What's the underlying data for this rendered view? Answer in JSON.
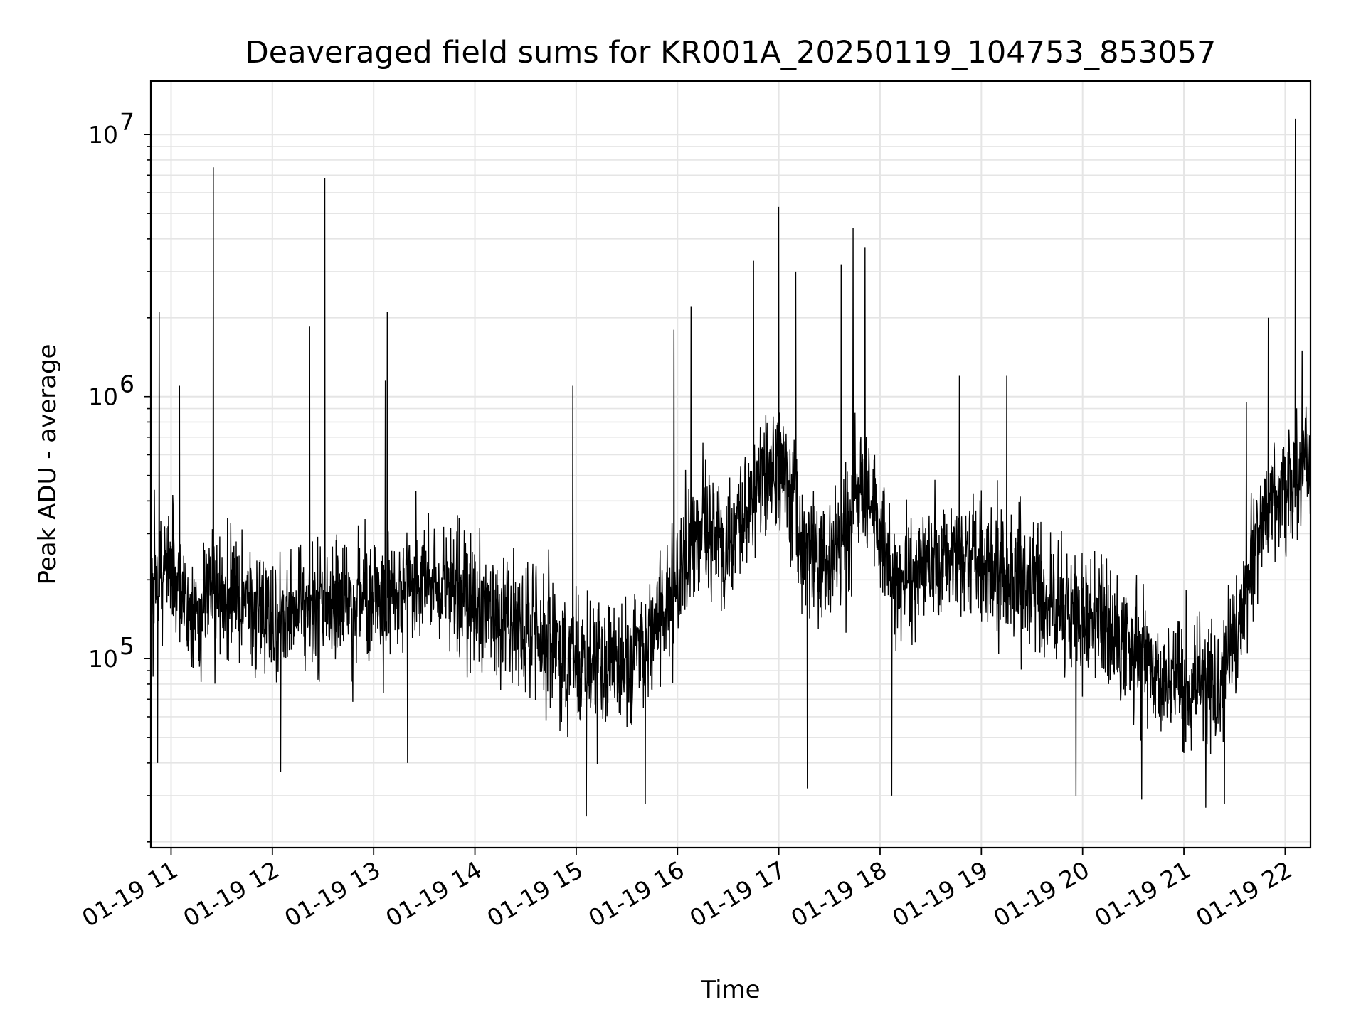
{
  "chart_data": {
    "type": "line",
    "title": "Deaveraged field sums for KR001A_20250119_104753_853057",
    "xlabel": "Time",
    "ylabel": "Peak ADU - average",
    "x_axis_type": "time",
    "xlim": [
      "2025-01-19T10:48:00",
      "2025-01-19T22:15:00"
    ],
    "y_scale": "log",
    "ylim": [
      19000,
      16000000
    ],
    "grid": true,
    "grid_minor": true,
    "line_color": "#000000",
    "grid_color": "#e5e5e5",
    "x_ticks": [
      {
        "t": "2025-01-19T11:00:00",
        "label": "01-19 11"
      },
      {
        "t": "2025-01-19T12:00:00",
        "label": "01-19 12"
      },
      {
        "t": "2025-01-19T13:00:00",
        "label": "01-19 13"
      },
      {
        "t": "2025-01-19T14:00:00",
        "label": "01-19 14"
      },
      {
        "t": "2025-01-19T15:00:00",
        "label": "01-19 15"
      },
      {
        "t": "2025-01-19T16:00:00",
        "label": "01-19 16"
      },
      {
        "t": "2025-01-19T17:00:00",
        "label": "01-19 17"
      },
      {
        "t": "2025-01-19T18:00:00",
        "label": "01-19 18"
      },
      {
        "t": "2025-01-19T19:00:00",
        "label": "01-19 19"
      },
      {
        "t": "2025-01-19T20:00:00",
        "label": "01-19 20"
      },
      {
        "t": "2025-01-19T21:00:00",
        "label": "01-19 21"
      },
      {
        "t": "2025-01-19T22:00:00",
        "label": "01-19 22"
      }
    ],
    "y_ticks": [
      {
        "value": 100000,
        "base": "10",
        "exp": "5"
      },
      {
        "value": 1000000,
        "base": "10",
        "exp": "6"
      },
      {
        "value": 10000000,
        "base": "10",
        "exp": "7"
      }
    ],
    "series": [
      {
        "baseline": [
          [
            "2025-01-19T10:48:00",
            180000
          ],
          [
            "2025-01-19T11:00:00",
            230000
          ],
          [
            "2025-01-19T11:10:00",
            150000
          ],
          [
            "2025-01-19T11:30:00",
            170000
          ],
          [
            "2025-01-19T12:00:00",
            150000
          ],
          [
            "2025-01-19T12:30:00",
            160000
          ],
          [
            "2025-01-19T13:00:00",
            170000
          ],
          [
            "2025-01-19T13:30:00",
            190000
          ],
          [
            "2025-01-19T14:00:00",
            160000
          ],
          [
            "2025-01-19T14:30:00",
            130000
          ],
          [
            "2025-01-19T15:00:00",
            100000
          ],
          [
            "2025-01-19T15:30:00",
            90000
          ],
          [
            "2025-01-19T15:50:00",
            140000
          ],
          [
            "2025-01-19T16:10:00",
            300000
          ],
          [
            "2025-01-19T16:30:00",
            260000
          ],
          [
            "2025-01-19T16:50:00",
            500000
          ],
          [
            "2025-01-19T17:00:00",
            550000
          ],
          [
            "2025-01-19T17:15:00",
            250000
          ],
          [
            "2025-01-19T17:30:00",
            220000
          ],
          [
            "2025-01-19T17:50:00",
            450000
          ],
          [
            "2025-01-19T18:10:00",
            200000
          ],
          [
            "2025-01-19T18:30:00",
            230000
          ],
          [
            "2025-01-19T18:50:00",
            250000
          ],
          [
            "2025-01-19T19:20:00",
            200000
          ],
          [
            "2025-01-19T19:50:00",
            160000
          ],
          [
            "2025-01-19T20:20:00",
            120000
          ],
          [
            "2025-01-19T20:50:00",
            85000
          ],
          [
            "2025-01-19T21:20:00",
            80000
          ],
          [
            "2025-01-19T21:35:00",
            150000
          ],
          [
            "2025-01-19T21:45:00",
            350000
          ],
          [
            "2025-01-19T22:00:00",
            450000
          ],
          [
            "2025-01-19T22:15:00",
            600000
          ]
        ],
        "spikes": [
          [
            "2025-01-19T10:53:00",
            2100000
          ],
          [
            "2025-01-19T10:52:00",
            40000
          ],
          [
            "2025-01-19T11:05:00",
            1100000
          ],
          [
            "2025-01-19T11:25:00",
            7500000
          ],
          [
            "2025-01-19T12:05:00",
            37000
          ],
          [
            "2025-01-19T12:22:00",
            1850000
          ],
          [
            "2025-01-19T12:31:00",
            6800000
          ],
          [
            "2025-01-19T13:07:00",
            1150000
          ],
          [
            "2025-01-19T13:08:00",
            2100000
          ],
          [
            "2025-01-19T13:20:00",
            40000
          ],
          [
            "2025-01-19T14:58:00",
            1100000
          ],
          [
            "2025-01-19T15:06:00",
            25000
          ],
          [
            "2025-01-19T15:41:00",
            28000
          ],
          [
            "2025-01-19T15:58:00",
            1800000
          ],
          [
            "2025-01-19T16:08:00",
            2200000
          ],
          [
            "2025-01-19T16:45:00",
            3300000
          ],
          [
            "2025-01-19T17:00:00",
            5300000
          ],
          [
            "2025-01-19T17:10:00",
            3000000
          ],
          [
            "2025-01-19T17:17:00",
            32000
          ],
          [
            "2025-01-19T17:37:00",
            3200000
          ],
          [
            "2025-01-19T17:44:00",
            4400000
          ],
          [
            "2025-01-19T17:51:00",
            3700000
          ],
          [
            "2025-01-19T18:07:00",
            30000
          ],
          [
            "2025-01-19T18:47:00",
            1200000
          ],
          [
            "2025-01-19T19:15:00",
            1200000
          ],
          [
            "2025-01-19T19:56:00",
            30000
          ],
          [
            "2025-01-19T20:35:00",
            29000
          ],
          [
            "2025-01-19T21:13:00",
            27000
          ],
          [
            "2025-01-19T21:24:00",
            28000
          ],
          [
            "2025-01-19T21:37:00",
            950000
          ],
          [
            "2025-01-19T21:50:00",
            2000000
          ],
          [
            "2025-01-19T22:06:00",
            11500000
          ],
          [
            "2025-01-19T22:10:00",
            1500000
          ]
        ]
      }
    ]
  }
}
